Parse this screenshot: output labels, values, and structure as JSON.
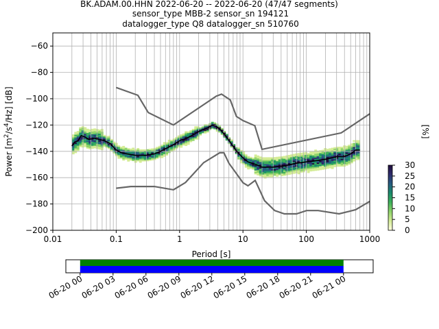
{
  "header": {
    "line1": "BK.ADAM.00.HHN   2022-06-20 -- 2022-06-20  (47/47 segments)",
    "line2": "sensor_type MBB-2 sensor_sn 194121",
    "line3": "datalogger_type Q8 datalogger_sn 510760"
  },
  "chart_data": [
    {
      "type": "heatmap",
      "title": "BK.ADAM.00.HHN   2022-06-20 -- 2022-06-20  (47/47 segments)",
      "xlabel": "Period [s]",
      "ylabel": "Power [m²/s⁴/Hz] [dB]",
      "x_scale": "log",
      "xlim": [
        0.01,
        1000
      ],
      "ylim": [
        -200,
        -50
      ],
      "x_ticks": [
        0.01,
        0.1,
        1,
        10,
        100,
        1000
      ],
      "x_tick_labels": [
        "0.01",
        "0.1",
        "1",
        "10",
        "100",
        "1000"
      ],
      "y_ticks": [
        -200,
        -180,
        -160,
        -140,
        -120,
        -100,
        -80,
        -60
      ],
      "y_tick_labels": [
        "−200",
        "−180",
        "−160",
        "−140",
        "−120",
        "−100",
        "−80",
        "−60"
      ],
      "grid": true,
      "colorbar": {
        "label": "[%]",
        "range": [
          0,
          30
        ],
        "ticks": [
          0,
          5,
          10,
          15,
          20,
          25,
          30
        ],
        "tick_labels": [
          "0",
          "5",
          "10",
          "15",
          "20",
          "25",
          "30"
        ],
        "colors": [
          "#ffffe0",
          "#d4ec96",
          "#8fd36a",
          "#3fb15a",
          "#1a8c6c",
          "#265c80",
          "#2e2d6e",
          "#210d3c"
        ]
      },
      "series": [
        {
          "name": "mode",
          "color": "#000000",
          "x": [
            0.02,
            0.022,
            0.025,
            0.028,
            0.032,
            0.037,
            0.045,
            0.055,
            0.065,
            0.08,
            0.1,
            0.12,
            0.15,
            0.2,
            0.3,
            0.4,
            0.5,
            0.6,
            0.8,
            1.0,
            1.3,
            1.7,
            2.2,
            2.8,
            3.3,
            3.8,
            4.5,
            5.5,
            6.5,
            8,
            10,
            12,
            16,
            20,
            30,
            45,
            70,
            100,
            150,
            200,
            300,
            400,
            500,
            600,
            700
          ],
          "values": [
            -136,
            -133,
            -132,
            -128,
            -129,
            -131,
            -130,
            -131,
            -132,
            -134,
            -139,
            -141,
            -142,
            -143,
            -143,
            -142,
            -140,
            -138,
            -135,
            -132,
            -130,
            -127,
            -124,
            -122,
            -120,
            -121,
            -124,
            -129,
            -134,
            -140,
            -145,
            -148,
            -150,
            -152,
            -152,
            -151,
            -149,
            -148,
            -147,
            -146,
            -144,
            -144,
            -142,
            -139,
            -139
          ]
        },
        {
          "name": "noise-model-high",
          "color": "#666666",
          "x": [
            0.1,
            0.22,
            0.32,
            0.8,
            3.8,
            4.6,
            6.3,
            7.9,
            10,
            15.4,
            20,
            354.8,
            1000
          ],
          "values": [
            -91.5,
            -97.4,
            -110.5,
            -120.0,
            -98.0,
            -96.5,
            -101.0,
            -113.5,
            -116.6,
            -120.5,
            -138.5,
            -126.0,
            -111.5
          ]
        },
        {
          "name": "noise-model-low",
          "color": "#666666",
          "x": [
            0.1,
            0.17,
            0.4,
            0.8,
            1.24,
            2.4,
            4.3,
            5.0,
            6.0,
            10,
            12,
            15.6,
            21.9,
            31.6,
            45,
            70,
            101,
            154,
            328,
            600,
            1000
          ],
          "values": [
            -168.0,
            -166.7,
            -166.7,
            -169.2,
            -163.7,
            -148.6,
            -141.1,
            -141.1,
            -149.0,
            -163.8,
            -166.2,
            -162.1,
            -177.5,
            -185.0,
            -187.5,
            -187.5,
            -185.0,
            -185.0,
            -187.5,
            -184.4,
            -178.0
          ]
        }
      ]
    },
    {
      "type": "timeline",
      "xlim": [
        "06-20 00",
        "06-21 02"
      ],
      "tick_labels": [
        "06-20 00",
        "06-20 03",
        "06-20 06",
        "06-20 09",
        "06-20 12",
        "06-20 15",
        "06-20 18",
        "06-20 21",
        "06-21 00"
      ],
      "coverage_start": "06-20 00",
      "coverage_end": "06-21 00",
      "series": [
        {
          "color": "#008000",
          "values": [
            1
          ]
        },
        {
          "color": "#0000ff",
          "values": [
            1
          ]
        }
      ]
    }
  ]
}
